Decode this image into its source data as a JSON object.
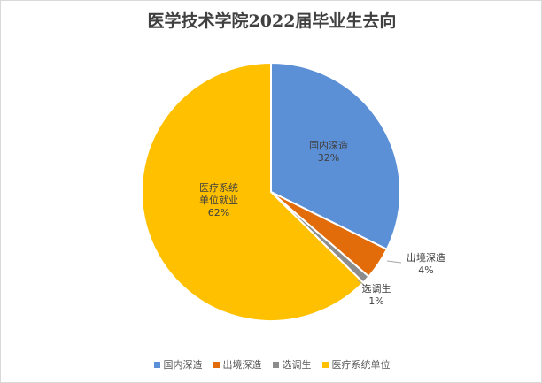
{
  "chart_data": {
    "type": "pie",
    "title": "医学技术学院2022届毕业生去向",
    "slices": [
      {
        "name": "国内深造",
        "label_lines": [
          "国内深造"
        ],
        "value": 32,
        "value_label": "32%",
        "color": "#5B8FD6"
      },
      {
        "name": "出境深造",
        "label_lines": [
          "出境深造"
        ],
        "value": 4,
        "value_label": "4%",
        "color": "#E36C0A"
      },
      {
        "name": "选调生",
        "label_lines": [
          "选调生"
        ],
        "value": 1,
        "value_label": "1%",
        "color": "#8C8C8C"
      },
      {
        "name": "医疗系统单位",
        "label_lines": [
          "医疗系统",
          "单位就业"
        ],
        "value": 62,
        "value_label": "62%",
        "color": "#FFC000"
      }
    ],
    "legend": {
      "placement": "bottom"
    }
  }
}
